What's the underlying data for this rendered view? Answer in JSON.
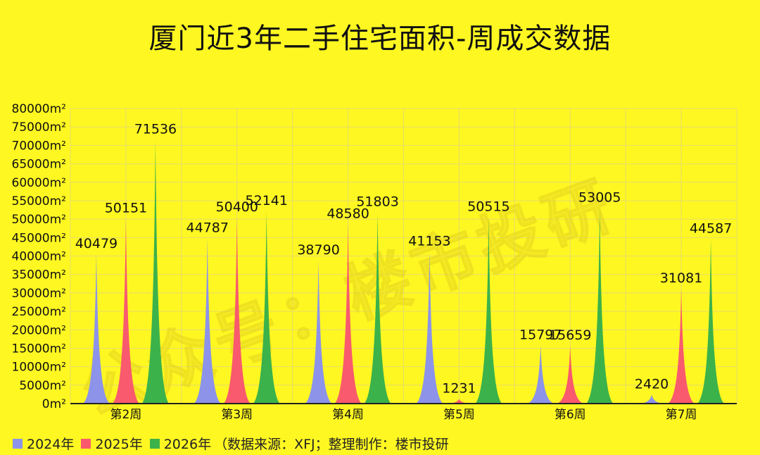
{
  "chart_data": {
    "type": "area",
    "title": "厦门近3年二手住宅面积-周成交数据",
    "categories": [
      "第2周",
      "第3周",
      "第4周",
      "第5周",
      "第6周",
      "第7周"
    ],
    "series": [
      {
        "name": "2024年",
        "color": "#8c93e9",
        "values": [
          40479,
          44787,
          38790,
          41153,
          15797,
          2420
        ]
      },
      {
        "name": "2025年",
        "color": "#f95a6d",
        "values": [
          50151,
          50400,
          48580,
          1231,
          15659,
          31081
        ]
      },
      {
        "name": "2026年",
        "color": "#3cb24a",
        "values": [
          71536,
          52141,
          51803,
          50515,
          53005,
          44587
        ]
      }
    ],
    "ylim": [
      0,
      80000
    ],
    "yticks": [
      "0m²",
      "5000m²",
      "10000m²",
      "15000m²",
      "20000m²",
      "25000m²",
      "30000m²",
      "35000m²",
      "40000m²",
      "45000m²",
      "50000m²",
      "55000m²",
      "60000m²",
      "65000m²",
      "70000m²",
      "75000m²",
      "80000m²"
    ],
    "grid": true,
    "legend_position": "bottom-left"
  },
  "legend": {
    "source_note": "（数据来源：XFJ；整理制作：楼市投研"
  },
  "watermark": "公众号：楼市投研"
}
